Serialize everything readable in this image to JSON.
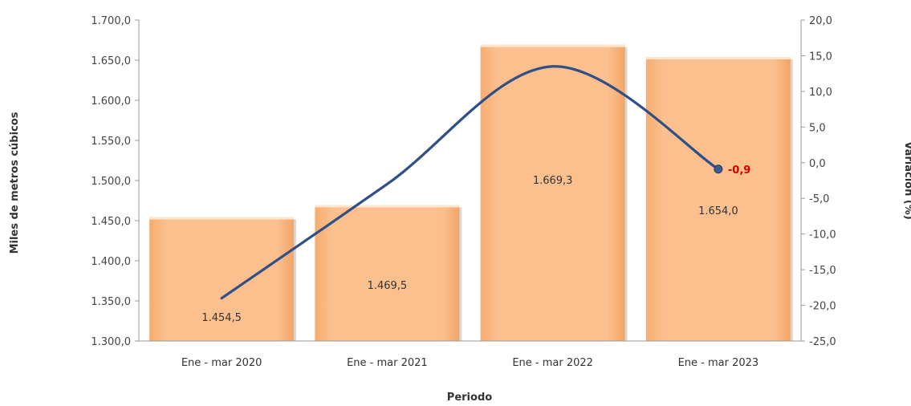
{
  "chart_data": {
    "type": "bar",
    "categories": [
      "Ene - mar 2020",
      "Ene - mar 2021",
      "Ene - mar 2022",
      "Ene - mar 2023"
    ],
    "series": [
      {
        "type": "bar",
        "axis": "left",
        "values": [
          1454.5,
          1469.5,
          1669.3,
          1654.0
        ],
        "labels": [
          "1.454,5",
          "1.469,5",
          "1.669,3",
          "1.654,0"
        ],
        "color": "#fbc08e"
      },
      {
        "type": "line",
        "axis": "right",
        "values": [
          -19.0,
          -3.0,
          13.5,
          -0.9
        ],
        "labels": [
          "",
          "",
          "",
          "-0,9"
        ],
        "color": "#2f4f86",
        "label_color": "#d10000"
      }
    ],
    "xlabel": "Periodo",
    "ylabel": "Miles de metros cúbicos",
    "y2label": "Variación (%)",
    "ylim": [
      1300,
      1700
    ],
    "y2lim": [
      -25,
      20
    ],
    "yticks": [
      1300,
      1350,
      1400,
      1450,
      1500,
      1550,
      1600,
      1650,
      1700
    ],
    "ytick_labels": [
      "1.300,0",
      "1.350,0",
      "1.400,0",
      "1.450,0",
      "1.500,0",
      "1.550,0",
      "1.600,0",
      "1.650,0",
      "1.700,0"
    ],
    "y2ticks": [
      -25,
      -20,
      -15,
      -10,
      -5,
      0,
      5,
      10,
      15,
      20
    ],
    "y2tick_labels": [
      "-25,0",
      "-20,0",
      "-15,0",
      "-10,0",
      "-5,0",
      "0,0",
      "5,0",
      "10,0",
      "15,0",
      "20,0"
    ],
    "grid": false,
    "legend": "none"
  }
}
